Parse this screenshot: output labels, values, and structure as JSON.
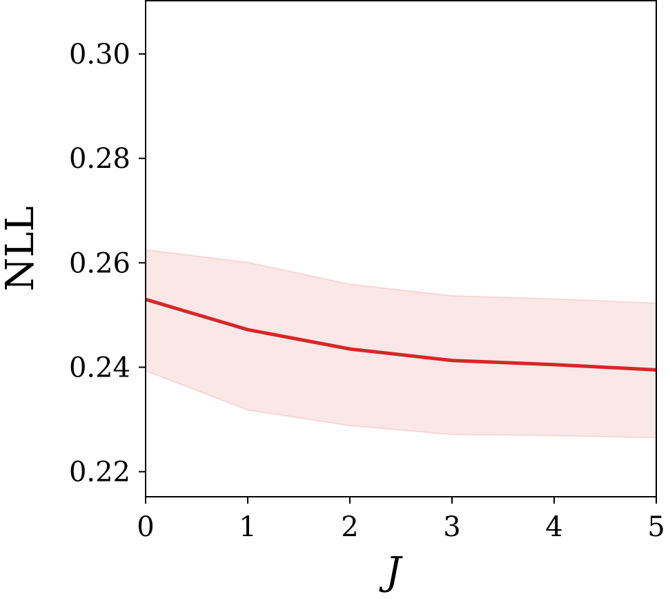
{
  "chart_data": {
    "type": "line",
    "xlabel": "J",
    "ylabel": "NLL",
    "x": [
      0,
      1,
      2,
      3,
      4,
      5
    ],
    "series": [
      {
        "color": "#d62728",
        "values": [
          0.253,
          0.2472,
          0.2435,
          0.2413,
          0.2405,
          0.2395
        ],
        "upper": [
          0.2625,
          0.2601,
          0.2559,
          0.2537,
          0.2531,
          0.2523
        ],
        "lower": [
          0.2393,
          0.2318,
          0.2288,
          0.2271,
          0.2269,
          0.2265
        ]
      }
    ],
    "xlim": [
      0,
      5
    ],
    "xticks": [
      0,
      1,
      2,
      3,
      4,
      5
    ],
    "ylim": [
      0.2152,
      0.3102
    ],
    "yticks": [
      {
        "value": 0.22,
        "label": "0.22"
      },
      {
        "value": 0.24,
        "label": "0.24"
      },
      {
        "value": 0.26,
        "label": "0.26"
      },
      {
        "value": 0.28,
        "label": "0.28"
      },
      {
        "value": 0.3,
        "label": "0.30"
      }
    ],
    "grid": false
  }
}
